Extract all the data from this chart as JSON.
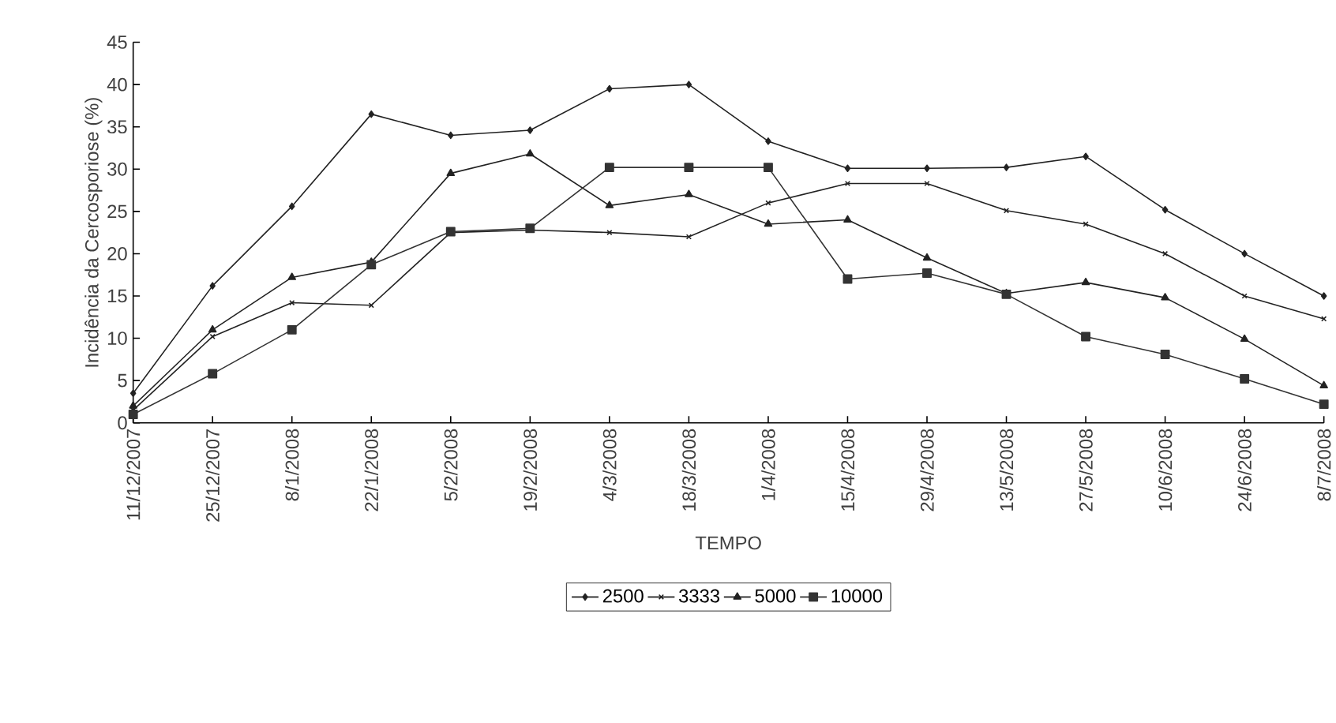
{
  "chart_data": {
    "type": "line",
    "xlabel": "TEMPO",
    "ylabel": "Incidência da Cercosporiose (%)",
    "categories": [
      "11/12/2007",
      "25/12/2007",
      "8/1/2008",
      "22/1/2008",
      "5/2/2008",
      "19/2/2008",
      "4/3/2008",
      "18/3/2008",
      "1/4/2008",
      "15/4/2008",
      "29/4/2008",
      "13/5/2008",
      "27/5/2008",
      "10/6/2008",
      "24/6/2008",
      "8/7/2008"
    ],
    "ylim": [
      0,
      45
    ],
    "yticks": [
      0,
      5,
      10,
      15,
      20,
      25,
      30,
      35,
      40,
      45
    ],
    "legend": "bottom",
    "grid": false,
    "series": [
      {
        "name": "2500",
        "color": "#222222",
        "marker": "diamond",
        "values": [
          3.5,
          16.2,
          25.6,
          36.5,
          34,
          34.6,
          39.5,
          40,
          33.3,
          30.1,
          30.1,
          30.2,
          31.5,
          25.2,
          20,
          15
        ]
      },
      {
        "name": "3333",
        "color": "#222222",
        "marker": "cross",
        "values": [
          1.5,
          10.2,
          14.2,
          13.9,
          22.5,
          22.8,
          22.5,
          22,
          26,
          28.3,
          28.3,
          25.1,
          23.5,
          20,
          15,
          12.3
        ]
      },
      {
        "name": "5000",
        "color": "#222222",
        "marker": "triangle",
        "values": [
          2,
          11,
          17.2,
          19,
          29.5,
          31.8,
          25.7,
          27,
          23.5,
          24,
          19.5,
          15.3,
          16.6,
          14.8,
          9.9,
          4.4
        ]
      },
      {
        "name": "10000",
        "color": "#333333",
        "marker": "square",
        "values": [
          1,
          5.8,
          11,
          18.7,
          22.6,
          23,
          30.2,
          30.2,
          30.2,
          17,
          17.7,
          15.2,
          10.2,
          8.1,
          5.2,
          2.2
        ]
      }
    ]
  }
}
